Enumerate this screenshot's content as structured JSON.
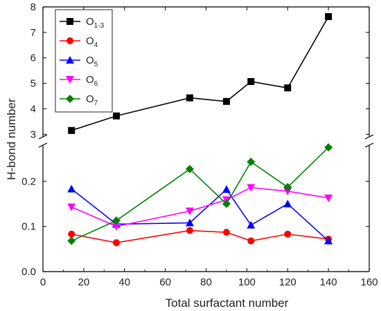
{
  "chart_data": {
    "type": "line",
    "xlabel": "Total surfactant number",
    "ylabel": "H-bond number",
    "xlim": [
      0,
      160
    ],
    "x_ticks": [
      0,
      20,
      40,
      60,
      80,
      100,
      120,
      140,
      160
    ],
    "axis_break": true,
    "upper_ylim": [
      2.9,
      8
    ],
    "upper_y_ticks": [
      3,
      4,
      5,
      6,
      7,
      8
    ],
    "lower_ylim": [
      0.0,
      0.28
    ],
    "lower_y_ticks": [
      0.0,
      0.1,
      0.2
    ],
    "lower_y_tick_labels": [
      "0.0",
      "0.1",
      "0.2"
    ],
    "grid": false,
    "legend_position": "top-left",
    "x": [
      14,
      36,
      72,
      90,
      102,
      120,
      140
    ],
    "series": [
      {
        "name": "O",
        "sub": "1-3",
        "color": "#000000",
        "marker": "square",
        "panel": "upper",
        "values": [
          3.15,
          3.72,
          4.43,
          4.29,
          5.07,
          4.82,
          7.62
        ]
      },
      {
        "name": "O",
        "sub": "4",
        "color": "#ff0000",
        "marker": "circle",
        "panel": "lower",
        "values": [
          0.083,
          0.064,
          0.091,
          0.087,
          0.068,
          0.083,
          0.072
        ]
      },
      {
        "name": "O",
        "sub": "5",
        "color": "#0000ff",
        "marker": "triangle-up",
        "panel": "lower",
        "values": [
          0.183,
          0.105,
          0.108,
          0.182,
          0.103,
          0.15,
          0.068
        ]
      },
      {
        "name": "O",
        "sub": "6",
        "color": "#ff00ff",
        "marker": "triangle-down",
        "panel": "lower",
        "values": [
          0.143,
          0.1,
          0.134,
          0.159,
          0.186,
          0.178,
          0.163
        ]
      },
      {
        "name": "O",
        "sub": "7",
        "color": "#008000",
        "marker": "diamond",
        "panel": "lower",
        "values": [
          0.068,
          0.113,
          0.227,
          0.15,
          0.243,
          0.187,
          0.275
        ]
      }
    ]
  }
}
